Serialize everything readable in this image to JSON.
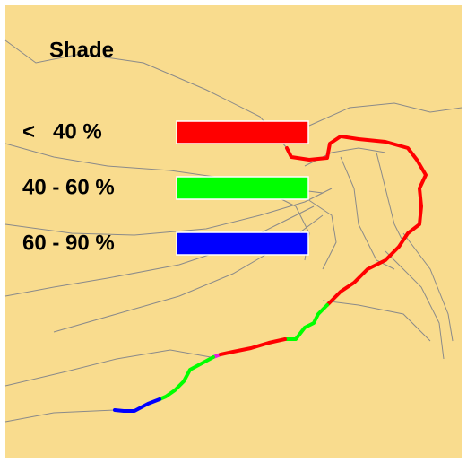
{
  "legend": {
    "title": "Shade",
    "items": [
      {
        "label": "<   40 %",
        "color": "#ff0000"
      },
      {
        "label": "40 - 60 %",
        "color": "#00ff00"
      },
      {
        "label": "60 - 90 %",
        "color": "#0000ff"
      }
    ]
  }
}
